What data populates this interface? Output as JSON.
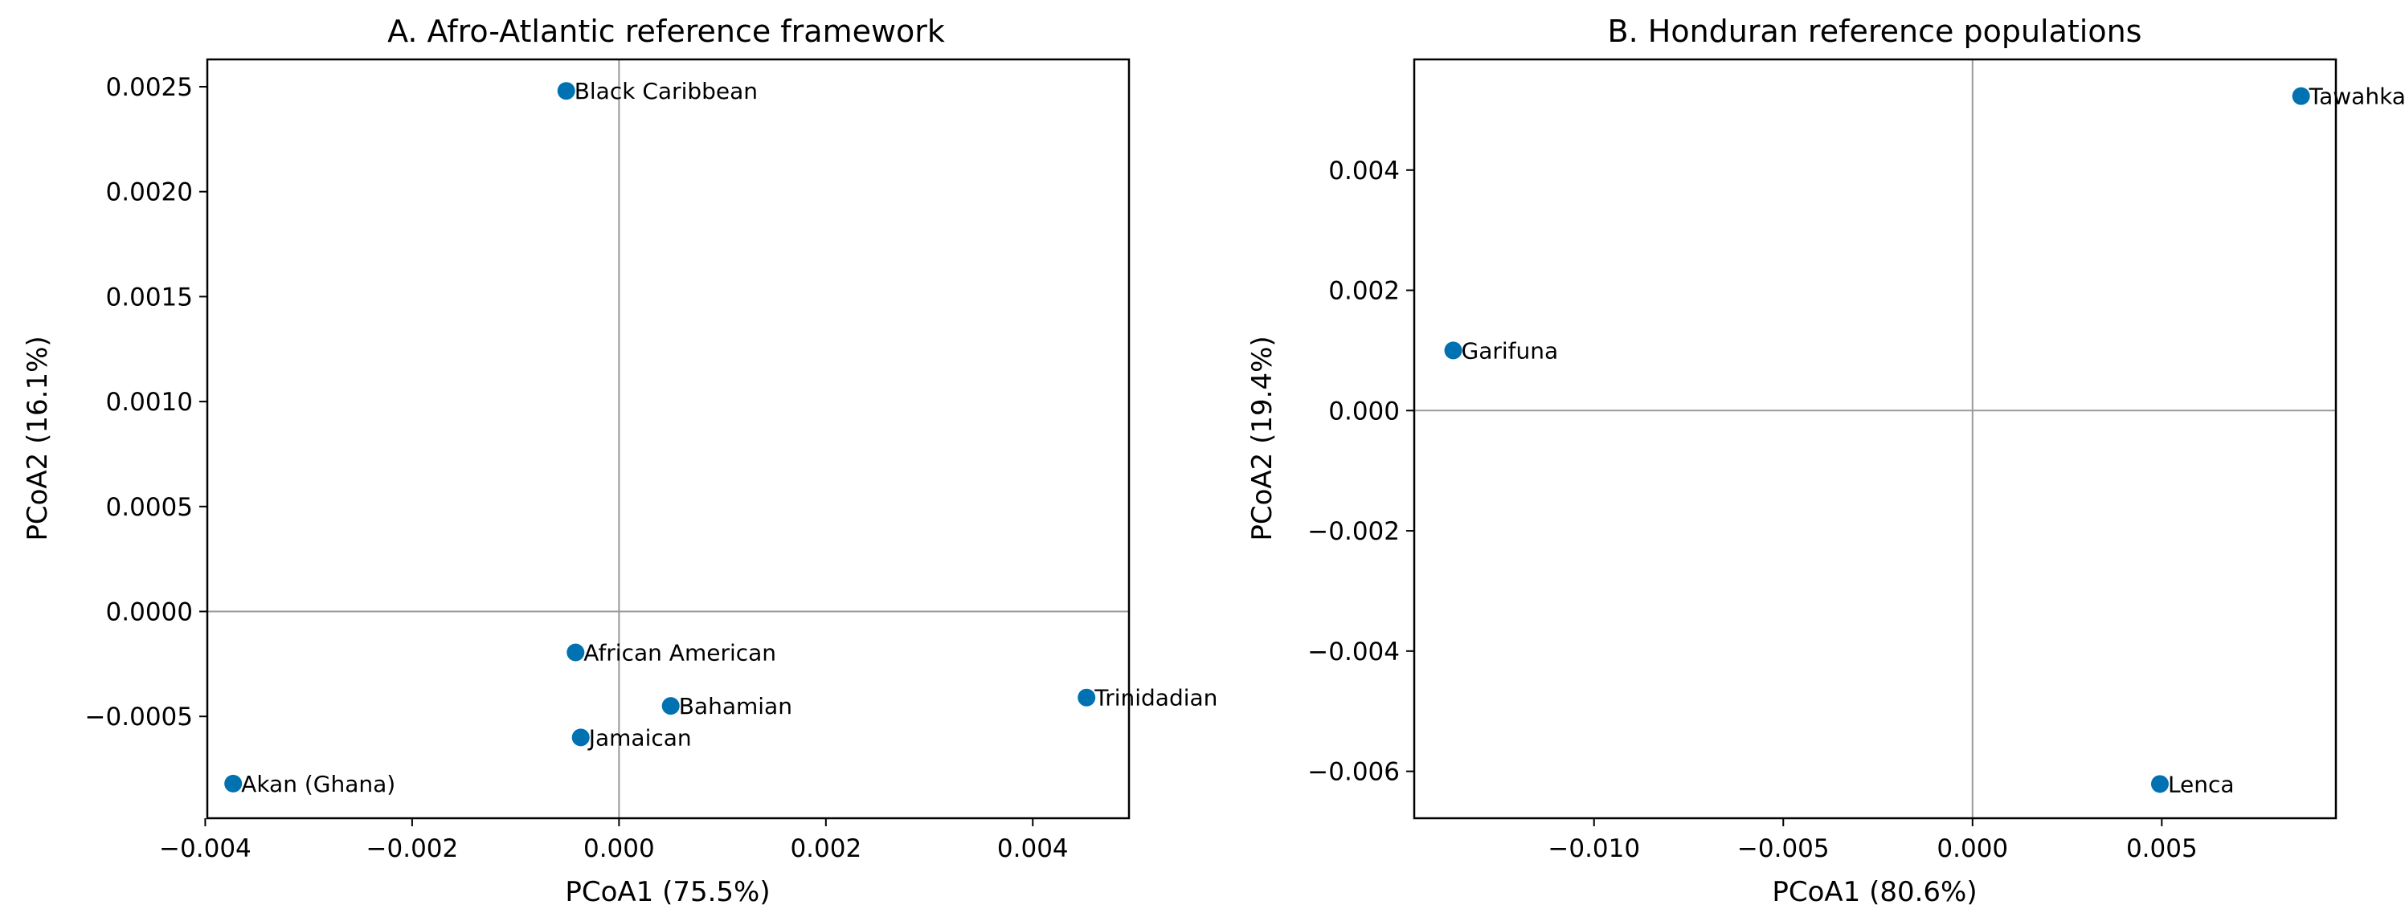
{
  "chart_data": [
    {
      "type": "scatter",
      "title": "A. Afro-Atlantic reference framework",
      "xlabel": "PCoA1 (75.5%)",
      "ylabel": "PCoA2 (16.1%)",
      "xlim": [
        -0.00398,
        0.00493
      ],
      "ylim": [
        -0.000985,
        0.00263
      ],
      "xticks": [
        -0.004,
        -0.002,
        0.0,
        0.002,
        0.004
      ],
      "xtick_labels": [
        "−0.004",
        "−0.002",
        "0.000",
        "0.002",
        "0.004"
      ],
      "yticks": [
        -0.0005,
        0.0,
        0.0005,
        0.001,
        0.0015,
        0.002,
        0.0025
      ],
      "ytick_labels": [
        "−0.0005",
        "0.0000",
        "0.0005",
        "0.0010",
        "0.0015",
        "0.0020",
        "0.0025"
      ],
      "reference_lines": {
        "x": 0,
        "y": 0
      },
      "marker_color": "#0072B2",
      "points": [
        {
          "label": "Black Caribbean",
          "x": -0.00051,
          "y": 0.00248
        },
        {
          "label": "African American",
          "x": -0.00042,
          "y": -0.000195
        },
        {
          "label": "Bahamian",
          "x": 0.0005,
          "y": -0.00045
        },
        {
          "label": "Trinidadian",
          "x": 0.00452,
          "y": -0.00041
        },
        {
          "label": "Jamaican",
          "x": -0.00037,
          "y": -0.0006
        },
        {
          "label": "Akan (Ghana)",
          "x": -0.00373,
          "y": -0.00082
        }
      ]
    },
    {
      "type": "scatter",
      "title": "B. Honduran reference populations",
      "xlabel": "PCoA1 (80.6%)",
      "ylabel": "PCoA2 (19.4%)",
      "xlim": [
        -0.01475,
        0.0096
      ],
      "ylim": [
        -0.00678,
        0.00584
      ],
      "xticks": [
        -0.01,
        -0.005,
        0.0,
        0.005
      ],
      "xtick_labels": [
        "−0.010",
        "−0.005",
        "0.000",
        "0.005"
      ],
      "yticks": [
        -0.006,
        -0.004,
        -0.002,
        0.0,
        0.002,
        0.004
      ],
      "ytick_labels": [
        "−0.006",
        "−0.004",
        "−0.002",
        "0.000",
        "0.002",
        "0.004"
      ],
      "reference_lines": {
        "x": 0,
        "y": 0
      },
      "marker_color": "#0072B2",
      "points": [
        {
          "label": "Tawahka",
          "x": 0.00868,
          "y": 0.00523
        },
        {
          "label": "Garifuna",
          "x": -0.01372,
          "y": 0.001
        },
        {
          "label": "Lenca",
          "x": 0.00495,
          "y": -0.00621
        }
      ]
    }
  ]
}
